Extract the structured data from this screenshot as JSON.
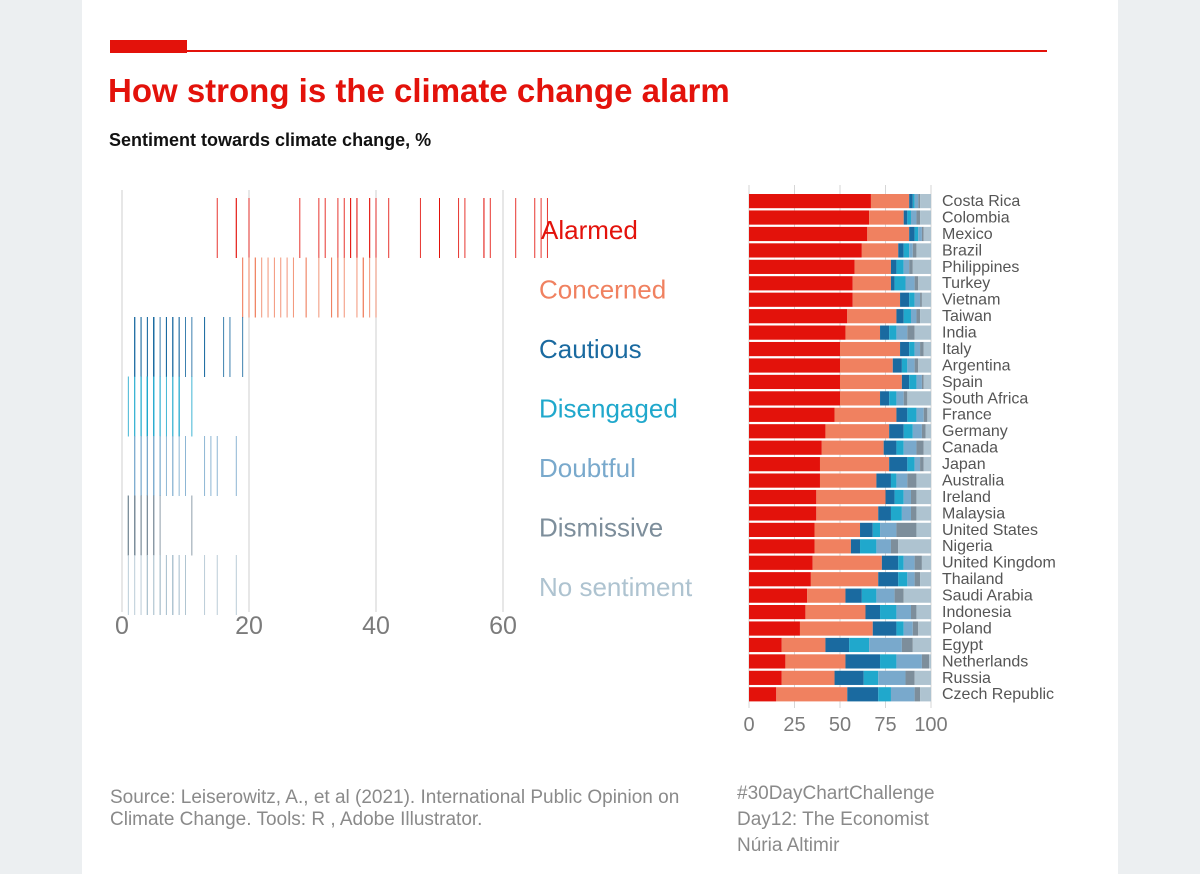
{
  "header": {
    "title": "How strong is the climate change alarm",
    "subtitle": "Sentiment towards climate change, %"
  },
  "footer": {
    "source": "Source: Leiserowitz, A., et al (2021). International Public Opinion on Climate Change. Tools: R , Adobe Illustrator.",
    "hashtag": "#30DayChartChallenge",
    "day": "Day12: The Economist",
    "author": "Núria Altimir"
  },
  "colors": {
    "Alarmed": "#e3120b",
    "Concerned": "#f08160",
    "Cautious": "#1a6aa0",
    "Disengaged": "#20a8cc",
    "Doubtful": "#79a9cc",
    "Dismissive": "#7d8e9b",
    "No sentiment": "#aec3d0"
  },
  "chart_data": [
    {
      "type": "strip",
      "categories": [
        "Alarmed",
        "Concerned",
        "Cautious",
        "Disengaged",
        "Doubtful",
        "Dismissive",
        "No sentiment"
      ],
      "xlim": [
        0,
        65
      ],
      "xticks": [
        0,
        20,
        40,
        60
      ],
      "grid": true
    },
    {
      "type": "bar",
      "orientation": "horizontal",
      "stacked": true,
      "xlim": [
        0,
        100
      ],
      "xticks": [
        0,
        25,
        50,
        75,
        100
      ],
      "categories": [
        "Costa Rica",
        "Colombia",
        "Mexico",
        "Brazil",
        "Philippines",
        "Turkey",
        "Vietnam",
        "Taiwan",
        "India",
        "Italy",
        "Argentina",
        "Spain",
        "South Africa",
        "France",
        "Germany",
        "Canada",
        "Japan",
        "Australia",
        "Ireland",
        "Malaysia",
        "United States",
        "Nigeria",
        "United Kingdom",
        "Thailand",
        "Saudi Arabia",
        "Indonesia",
        "Poland",
        "Egypt",
        "Netherlands",
        "Russia",
        "Czech Republic"
      ],
      "series": [
        {
          "name": "Alarmed",
          "values": [
            67,
            66,
            65,
            62,
            58,
            57,
            57,
            54,
            53,
            50,
            50,
            50,
            50,
            47,
            42,
            40,
            39,
            39,
            37,
            37,
            36,
            36,
            35,
            34,
            32,
            31,
            28,
            18,
            20,
            18,
            15
          ]
        },
        {
          "name": "Concerned",
          "values": [
            21,
            19,
            23,
            20,
            20,
            21,
            26,
            27,
            19,
            33,
            29,
            34,
            22,
            34,
            35,
            34,
            38,
            31,
            38,
            34,
            25,
            20,
            38,
            37,
            21,
            33,
            40,
            24,
            33,
            29,
            39
          ]
        },
        {
          "name": "Cautious",
          "values": [
            2,
            2,
            3,
            3,
            3,
            2,
            5,
            4,
            5,
            5,
            5,
            4,
            5,
            6,
            8,
            7,
            10,
            8,
            5,
            7,
            7,
            5,
            9,
            11,
            9,
            8,
            13,
            13,
            19,
            16,
            17
          ]
        },
        {
          "name": "Disengaged",
          "values": [
            1,
            2,
            2,
            3,
            4,
            6,
            3,
            4,
            4,
            3,
            3,
            4,
            4,
            5,
            5,
            4,
            4,
            3,
            5,
            6,
            4,
            9,
            3,
            5,
            8,
            9,
            4,
            11,
            9,
            8,
            7
          ]
        },
        {
          "name": "Doubtful",
          "values": [
            2,
            3,
            2,
            2,
            3,
            5,
            3,
            3,
            6,
            3,
            4,
            3,
            4,
            4,
            5,
            7,
            3,
            6,
            4,
            5,
            9,
            8,
            6,
            4,
            10,
            8,
            5,
            18,
            14,
            15,
            13
          ]
        },
        {
          "name": "Dismissive",
          "values": [
            1,
            2,
            1,
            2,
            2,
            2,
            1,
            2,
            4,
            2,
            2,
            1,
            2,
            2,
            2,
            4,
            2,
            5,
            3,
            3,
            11,
            4,
            4,
            3,
            5,
            3,
            3,
            6,
            4,
            5,
            3
          ]
        },
        {
          "name": "No sentiment",
          "values": [
            6,
            6,
            4,
            8,
            10,
            7,
            5,
            6,
            9,
            4,
            7,
            4,
            13,
            2,
            3,
            4,
            4,
            8,
            8,
            8,
            8,
            18,
            5,
            6,
            15,
            8,
            7,
            10,
            1,
            9,
            6
          ]
        }
      ]
    }
  ]
}
